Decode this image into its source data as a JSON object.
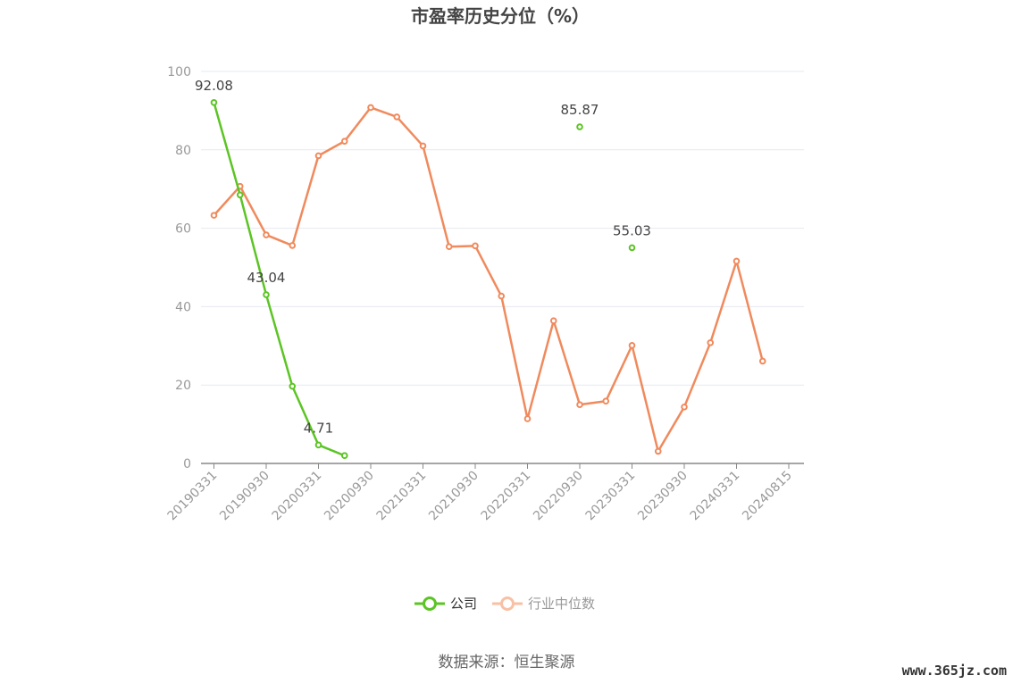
{
  "chart_data": {
    "type": "line",
    "title": "市盈率历史分位（%）",
    "ylim": [
      0,
      100
    ],
    "y_ticks": [
      0,
      20,
      40,
      60,
      80,
      100
    ],
    "x_tick_labels": [
      "20190331",
      "20190930",
      "20200331",
      "20200930",
      "20210331",
      "20210930",
      "20220331",
      "20220930",
      "20230331",
      "20230930",
      "20240331",
      "20240815"
    ],
    "x": [
      "20190331",
      "20190630",
      "20190930",
      "20191231",
      "20200331",
      "20200630",
      "20200930",
      "20201231",
      "20210331",
      "20210630",
      "20210930",
      "20211231",
      "20220331",
      "20220630",
      "20220930",
      "20221231",
      "20230331",
      "20230630",
      "20230930",
      "20231231",
      "20240331",
      "20240630"
    ],
    "series": [
      {
        "name": "公司",
        "color": "#5cc424",
        "values": [
          92.08,
          68.5,
          43.04,
          19.7,
          4.71,
          2.0,
          null,
          null,
          null,
          null,
          null,
          null,
          null,
          null,
          85.87,
          null,
          55.03,
          null,
          null,
          null,
          null,
          null
        ],
        "labels": [
          {
            "index": 0,
            "text": "92.08"
          },
          {
            "index": 2,
            "text": "43.04"
          },
          {
            "index": 4,
            "text": "4.71"
          },
          {
            "index": 14,
            "text": "85.87"
          },
          {
            "index": 16,
            "text": "55.03"
          }
        ]
      },
      {
        "name": "行业中位数",
        "color": "#f08a5d",
        "values": [
          63.3,
          70.7,
          58.3,
          55.6,
          78.5,
          82.2,
          90.8,
          88.4,
          81.0,
          55.3,
          55.5,
          42.7,
          11.4,
          36.4,
          15.0,
          15.9,
          30.1,
          3.1,
          14.4,
          30.8,
          51.6,
          26.1
        ]
      }
    ],
    "legend": {
      "placement": "bottom-center",
      "items": [
        "公司",
        "行业中位数"
      ]
    },
    "grid": true
  },
  "footer": {
    "source": "数据来源：恒生聚源"
  },
  "watermark": {
    "text": "www.365jz.com"
  }
}
